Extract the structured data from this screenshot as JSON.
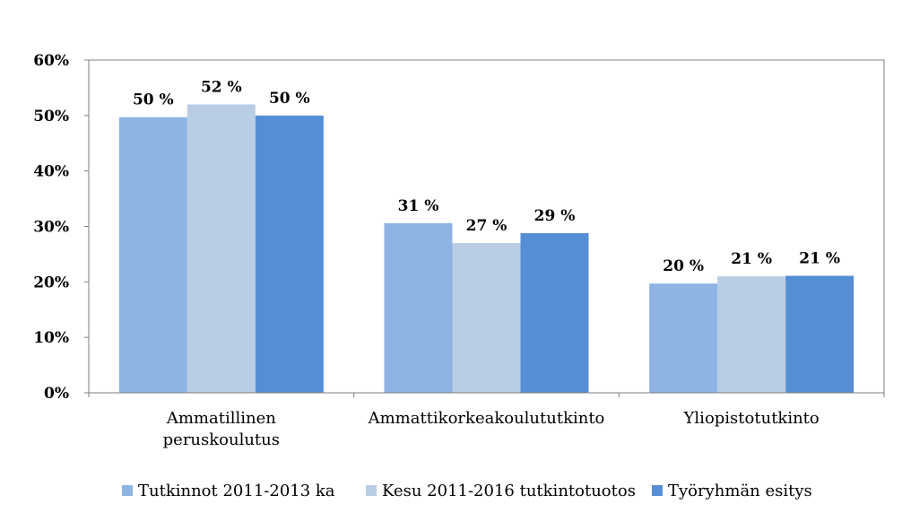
{
  "chart_data": {
    "type": "bar",
    "categories": [
      [
        "Ammatillinen",
        "peruskoulutus"
      ],
      [
        "Ammattikorkeakoulututkinto"
      ],
      [
        "Yliopistotutkinto"
      ]
    ],
    "series": [
      {
        "name": "Tutkinnot 2011-2013 ka",
        "color": "#8eb4e3",
        "values": [
          0.497,
          0.306,
          0.197
        ],
        "labels": [
          "50 %",
          "31 %",
          "20 %"
        ]
      },
      {
        "name": "Kesu 2011-2016 tutkintotuotos",
        "color": "#b9cde5",
        "values": [
          0.52,
          0.27,
          0.21
        ],
        "labels": [
          "52 %",
          "27 %",
          "21 %"
        ]
      },
      {
        "name": "Työryhmän esitys",
        "color": "#558ed5",
        "values": [
          0.5,
          0.288,
          0.211
        ],
        "labels": [
          "50 %",
          "29 %",
          "21 %"
        ]
      }
    ],
    "yticks": [
      "0%",
      "10%",
      "20%",
      "30%",
      "40%",
      "50%",
      "60%"
    ],
    "ylim": [
      0,
      0.6
    ],
    "grid": false,
    "legend": "bottom"
  }
}
